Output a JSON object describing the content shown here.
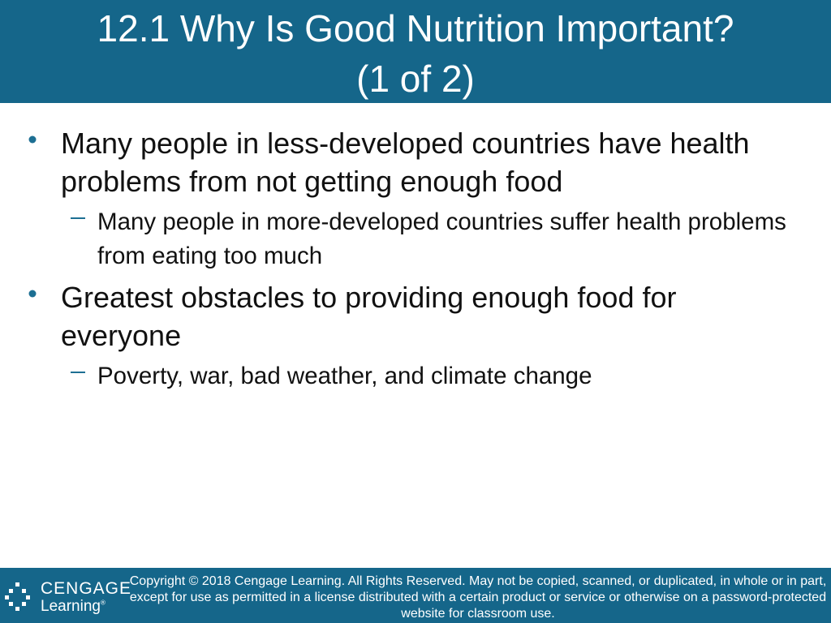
{
  "header": {
    "title": [
      "12.1 Why Is Good Nutrition Important?",
      "(1 of 2)"
    ]
  },
  "body": {
    "bullets": [
      {
        "text": "Many people in less-developed countries have health problems from not getting enough food",
        "subitems": [
          "Many people in more-developed countries suffer health problems from eating too much"
        ]
      },
      {
        "text": "Greatest obstacles to providing enough food for everyone",
        "subitems": [
          "Poverty, war, bad weather, and climate change"
        ]
      }
    ]
  },
  "footer": {
    "logo": {
      "brand": "CENGAGE",
      "sub": "Learning",
      "mark": "®"
    },
    "copyright": "Copyright © 2018 Cengage Learning. All Rights Reserved. May not be copied, scanned, or duplicated, in whole or in part, except for use as permitted in a license distributed with a certain product or service or otherwise on a password-protected website for classroom use."
  }
}
